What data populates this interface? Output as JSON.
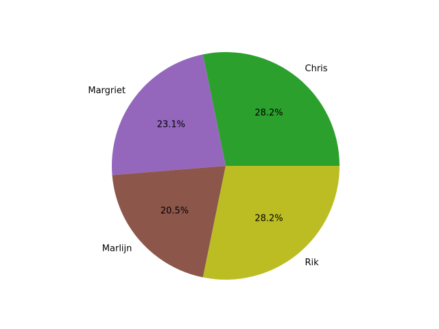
{
  "chart_data": {
    "type": "pie",
    "title": "",
    "start_angle_deg": 0,
    "direction": "counterclockwise",
    "slices": [
      {
        "label": "Chris",
        "value": 28.2,
        "percent_label": "28.2%",
        "color": "#2ca02c"
      },
      {
        "label": "Margriet",
        "value": 23.1,
        "percent_label": "23.1%",
        "color": "#9467bd"
      },
      {
        "label": "Marlijn",
        "value": 20.5,
        "percent_label": "20.5%",
        "color": "#8c564b"
      },
      {
        "label": "Rik",
        "value": 28.2,
        "percent_label": "28.2%",
        "color": "#bcbd22"
      }
    ]
  }
}
